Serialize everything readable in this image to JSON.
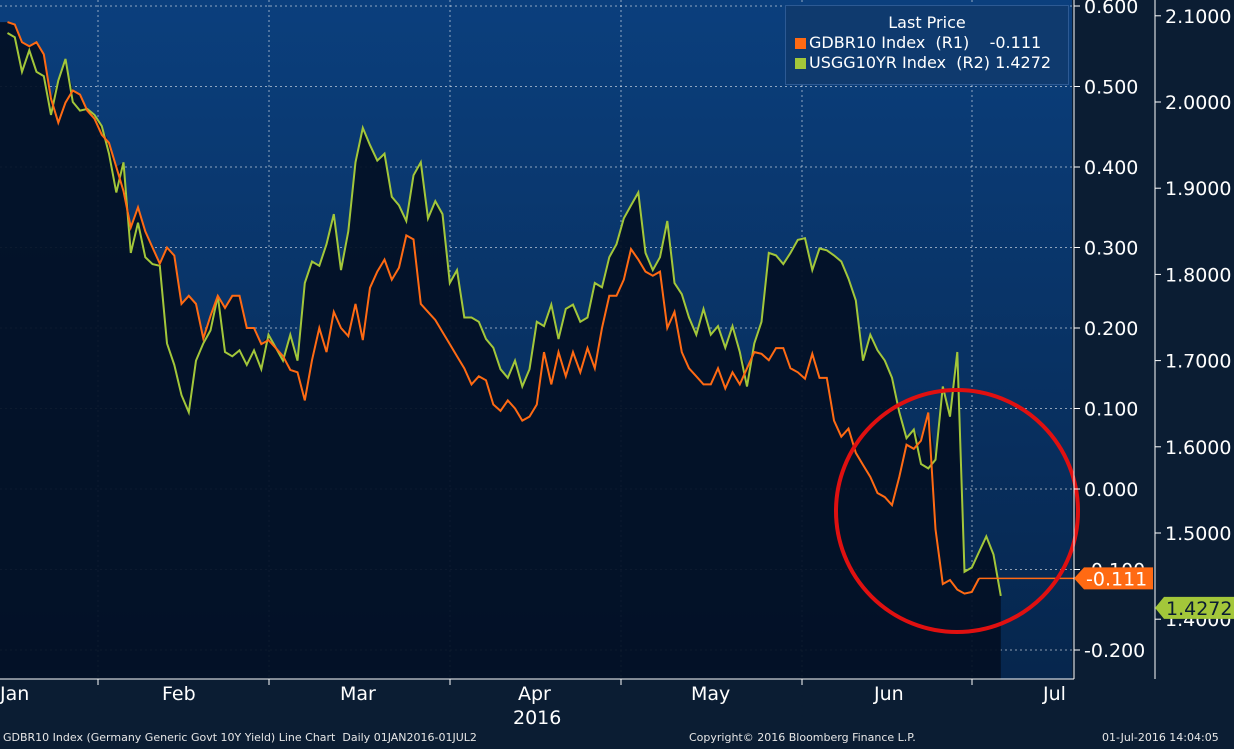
{
  "colors": {
    "background": "#0b1d33",
    "plot_upper": "#0b3f7d",
    "plot_lower": "#031025",
    "gdbr": "#ff6a13",
    "usgg": "#a3c73a",
    "annotation_circle": "#e01010"
  },
  "legend": {
    "title": "Last Price",
    "entries": [
      {
        "label": "GDBR10 Index  (R1)    -0.111",
        "color": "#ff6a13"
      },
      {
        "label": "USGG10YR Index  (R2) 1.4272",
        "color": "#a3c73a"
      }
    ]
  },
  "chart_data": {
    "type": "line",
    "x": {
      "tick_labels": [
        "Jan",
        "Feb",
        "Mar",
        "Apr",
        "May",
        "Jun",
        "Jul"
      ],
      "year_label": "2016",
      "range": [
        "2016-01-01",
        "2016-07-01"
      ]
    },
    "y_axis_r1": {
      "ticks": [
        "0.600",
        "0.500",
        "0.400",
        "0.300",
        "0.200",
        "0.100",
        "0.000",
        "-0.100",
        "-0.200"
      ],
      "range": [
        -0.23,
        0.61
      ]
    },
    "y_axis_r2": {
      "ticks": [
        "2.1000",
        "2.0000",
        "1.9000",
        "1.8000",
        "1.7000",
        "1.6000",
        "1.5000",
        "1.4000"
      ],
      "range": [
        1.34,
        2.115
      ]
    },
    "grid": true,
    "legend_position": "top-right",
    "series": [
      {
        "name": "GDBR10 Index",
        "axis": "R1",
        "last_value": "-0.111",
        "values": [
          [
            0,
            0.58
          ],
          [
            1,
            0.577
          ],
          [
            2,
            0.555
          ],
          [
            3,
            0.55
          ],
          [
            4,
            0.555
          ],
          [
            5,
            0.54
          ],
          [
            6,
            0.485
          ],
          [
            7,
            0.455
          ],
          [
            8,
            0.48
          ],
          [
            9,
            0.495
          ],
          [
            10,
            0.49
          ],
          [
            11,
            0.47
          ],
          [
            12,
            0.46
          ],
          [
            13,
            0.44
          ],
          [
            14,
            0.43
          ],
          [
            15,
            0.4
          ],
          [
            16,
            0.37
          ],
          [
            17,
            0.325
          ],
          [
            18,
            0.35
          ],
          [
            19,
            0.32
          ],
          [
            20,
            0.3
          ],
          [
            21,
            0.28
          ],
          [
            22,
            0.3
          ],
          [
            23,
            0.29
          ],
          [
            24,
            0.23
          ],
          [
            25,
            0.24
          ],
          [
            26,
            0.23
          ],
          [
            27,
            0.187
          ],
          [
            28,
            0.215
          ],
          [
            29,
            0.24
          ],
          [
            30,
            0.225
          ],
          [
            31,
            0.24
          ],
          [
            32,
            0.24
          ],
          [
            33,
            0.2
          ],
          [
            34,
            0.2
          ],
          [
            35,
            0.18
          ],
          [
            36,
            0.185
          ],
          [
            37,
            0.175
          ],
          [
            38,
            0.165
          ],
          [
            39,
            0.148
          ],
          [
            40,
            0.145
          ],
          [
            41,
            0.11
          ],
          [
            42,
            0.16
          ],
          [
            43,
            0.2
          ],
          [
            44,
            0.17
          ],
          [
            45,
            0.22
          ],
          [
            46,
            0.2
          ],
          [
            47,
            0.19
          ],
          [
            48,
            0.23
          ],
          [
            49,
            0.185
          ],
          [
            50,
            0.25
          ],
          [
            51,
            0.27
          ],
          [
            52,
            0.285
          ],
          [
            53,
            0.26
          ],
          [
            54,
            0.275
          ],
          [
            55,
            0.315
          ],
          [
            56,
            0.31
          ],
          [
            57,
            0.23
          ],
          [
            58,
            0.22
          ],
          [
            59,
            0.21
          ],
          [
            60,
            0.195
          ],
          [
            61,
            0.18
          ],
          [
            62,
            0.165
          ],
          [
            63,
            0.15
          ],
          [
            64,
            0.13
          ],
          [
            65,
            0.14
          ],
          [
            66,
            0.135
          ],
          [
            67,
            0.105
          ],
          [
            68,
            0.097
          ],
          [
            69,
            0.11
          ],
          [
            70,
            0.1
          ],
          [
            71,
            0.085
          ],
          [
            72,
            0.09
          ],
          [
            73,
            0.105
          ],
          [
            74,
            0.17
          ],
          [
            75,
            0.13
          ],
          [
            76,
            0.17
          ],
          [
            77,
            0.14
          ],
          [
            78,
            0.17
          ],
          [
            79,
            0.145
          ],
          [
            80,
            0.175
          ],
          [
            81,
            0.15
          ],
          [
            82,
            0.2
          ],
          [
            83,
            0.24
          ],
          [
            84,
            0.24
          ],
          [
            85,
            0.26
          ],
          [
            86,
            0.298
          ],
          [
            87,
            0.285
          ],
          [
            88,
            0.27
          ],
          [
            89,
            0.265
          ],
          [
            90,
            0.27
          ],
          [
            91,
            0.2
          ],
          [
            92,
            0.22
          ],
          [
            93,
            0.17
          ],
          [
            94,
            0.15
          ],
          [
            95,
            0.14
          ],
          [
            96,
            0.13
          ],
          [
            97,
            0.13
          ],
          [
            98,
            0.15
          ],
          [
            99,
            0.125
          ],
          [
            100,
            0.145
          ],
          [
            101,
            0.13
          ],
          [
            102,
            0.15
          ],
          [
            103,
            0.17
          ],
          [
            104,
            0.168
          ],
          [
            105,
            0.16
          ],
          [
            106,
            0.175
          ],
          [
            107,
            0.175
          ],
          [
            108,
            0.15
          ],
          [
            109,
            0.145
          ],
          [
            110,
            0.137
          ],
          [
            111,
            0.168
          ],
          [
            112,
            0.138
          ],
          [
            113,
            0.138
          ],
          [
            114,
            0.085
          ],
          [
            115,
            0.065
          ],
          [
            116,
            0.075
          ],
          [
            117,
            0.045
          ],
          [
            118,
            0.03
          ],
          [
            119,
            0.015
          ],
          [
            120,
            -0.005
          ],
          [
            121,
            -0.01
          ],
          [
            122,
            -0.02
          ],
          [
            123,
            0.015
          ],
          [
            124,
            0.055
          ],
          [
            125,
            0.05
          ],
          [
            126,
            0.06
          ],
          [
            127,
            0.095
          ],
          [
            128,
            -0.05
          ],
          [
            129,
            -0.118
          ],
          [
            130,
            -0.113
          ],
          [
            131,
            -0.125
          ],
          [
            132,
            -0.13
          ],
          [
            133,
            -0.128
          ],
          [
            134,
            -0.111
          ]
        ]
      },
      {
        "name": "USGG10YR Index",
        "axis": "R2",
        "last_value": "1.4272",
        "values": [
          [
            0,
            2.08
          ],
          [
            1,
            2.075
          ],
          [
            2,
            2.035
          ],
          [
            3,
            2.06
          ],
          [
            4,
            2.035
          ],
          [
            5,
            2.03
          ],
          [
            6,
            1.985
          ],
          [
            7,
            2.025
          ],
          [
            8,
            2.05
          ],
          [
            9,
            2.0
          ],
          [
            10,
            1.99
          ],
          [
            11,
            1.992
          ],
          [
            12,
            1.985
          ],
          [
            13,
            1.972
          ],
          [
            14,
            1.94
          ],
          [
            15,
            1.895
          ],
          [
            16,
            1.93
          ],
          [
            17,
            1.825
          ],
          [
            18,
            1.86
          ],
          [
            19,
            1.82
          ],
          [
            20,
            1.812
          ],
          [
            21,
            1.81
          ],
          [
            22,
            1.72
          ],
          [
            23,
            1.695
          ],
          [
            24,
            1.66
          ],
          [
            25,
            1.64
          ],
          [
            26,
            1.7
          ],
          [
            27,
            1.72
          ],
          [
            28,
            1.735
          ],
          [
            29,
            1.775
          ],
          [
            30,
            1.71
          ],
          [
            31,
            1.705
          ],
          [
            32,
            1.712
          ],
          [
            33,
            1.695
          ],
          [
            34,
            1.712
          ],
          [
            35,
            1.69
          ],
          [
            36,
            1.73
          ],
          [
            37,
            1.715
          ],
          [
            38,
            1.7
          ],
          [
            39,
            1.73
          ],
          [
            40,
            1.7
          ],
          [
            41,
            1.79
          ],
          [
            42,
            1.815
          ],
          [
            43,
            1.81
          ],
          [
            44,
            1.835
          ],
          [
            45,
            1.87
          ],
          [
            46,
            1.805
          ],
          [
            47,
            1.85
          ],
          [
            48,
            1.93
          ],
          [
            49,
            1.97
          ],
          [
            50,
            1.95
          ],
          [
            51,
            1.932
          ],
          [
            52,
            1.94
          ],
          [
            53,
            1.89
          ],
          [
            54,
            1.88
          ],
          [
            55,
            1.862
          ],
          [
            56,
            1.915
          ],
          [
            57,
            1.93
          ],
          [
            58,
            1.865
          ],
          [
            59,
            1.885
          ],
          [
            60,
            1.87
          ],
          [
            61,
            1.79
          ],
          [
            62,
            1.805
          ],
          [
            63,
            1.75
          ],
          [
            64,
            1.75
          ],
          [
            65,
            1.745
          ],
          [
            66,
            1.725
          ],
          [
            67,
            1.715
          ],
          [
            68,
            1.69
          ],
          [
            69,
            1.68
          ],
          [
            70,
            1.7
          ],
          [
            71,
            1.67
          ],
          [
            72,
            1.69
          ],
          [
            73,
            1.745
          ],
          [
            74,
            1.74
          ],
          [
            75,
            1.765
          ],
          [
            76,
            1.725
          ],
          [
            77,
            1.76
          ],
          [
            78,
            1.765
          ],
          [
            79,
            1.745
          ],
          [
            80,
            1.75
          ],
          [
            81,
            1.79
          ],
          [
            82,
            1.785
          ],
          [
            83,
            1.82
          ],
          [
            84,
            1.835
          ],
          [
            85,
            1.865
          ],
          [
            86,
            1.88
          ],
          [
            87,
            1.895
          ],
          [
            88,
            1.825
          ],
          [
            89,
            1.805
          ],
          [
            90,
            1.82
          ],
          [
            91,
            1.862
          ],
          [
            92,
            1.79
          ],
          [
            93,
            1.777
          ],
          [
            94,
            1.75
          ],
          [
            95,
            1.73
          ],
          [
            96,
            1.76
          ],
          [
            97,
            1.73
          ],
          [
            98,
            1.74
          ],
          [
            99,
            1.715
          ],
          [
            100,
            1.74
          ],
          [
            101,
            1.71
          ],
          [
            102,
            1.67
          ],
          [
            103,
            1.72
          ],
          [
            104,
            1.745
          ],
          [
            105,
            1.825
          ],
          [
            106,
            1.822
          ],
          [
            107,
            1.812
          ],
          [
            108,
            1.825
          ],
          [
            109,
            1.84
          ],
          [
            110,
            1.842
          ],
          [
            111,
            1.805
          ],
          [
            112,
            1.83
          ],
          [
            113,
            1.828
          ],
          [
            114,
            1.822
          ],
          [
            115,
            1.815
          ],
          [
            116,
            1.795
          ],
          [
            117,
            1.77
          ],
          [
            118,
            1.7
          ],
          [
            119,
            1.73
          ],
          [
            120,
            1.712
          ],
          [
            121,
            1.7
          ],
          [
            122,
            1.68
          ],
          [
            123,
            1.64
          ],
          [
            124,
            1.61
          ],
          [
            125,
            1.62
          ],
          [
            126,
            1.58
          ],
          [
            127,
            1.575
          ],
          [
            128,
            1.585
          ],
          [
            129,
            1.67
          ],
          [
            130,
            1.635
          ],
          [
            131,
            1.71
          ],
          [
            132,
            1.455
          ],
          [
            133,
            1.46
          ],
          [
            134,
            1.478
          ],
          [
            135,
            1.496
          ],
          [
            136,
            1.475
          ],
          [
            137,
            1.427
          ]
        ]
      }
    ]
  },
  "footer": {
    "left": "GDBR10 Index (Germany Generic Govt 10Y Yield) Line Chart  Daily 01JAN2016-01JUL2",
    "center": "Copyright© 2016 Bloomberg Finance L.P.",
    "right": "01-Jul-2016 14:04:05"
  }
}
